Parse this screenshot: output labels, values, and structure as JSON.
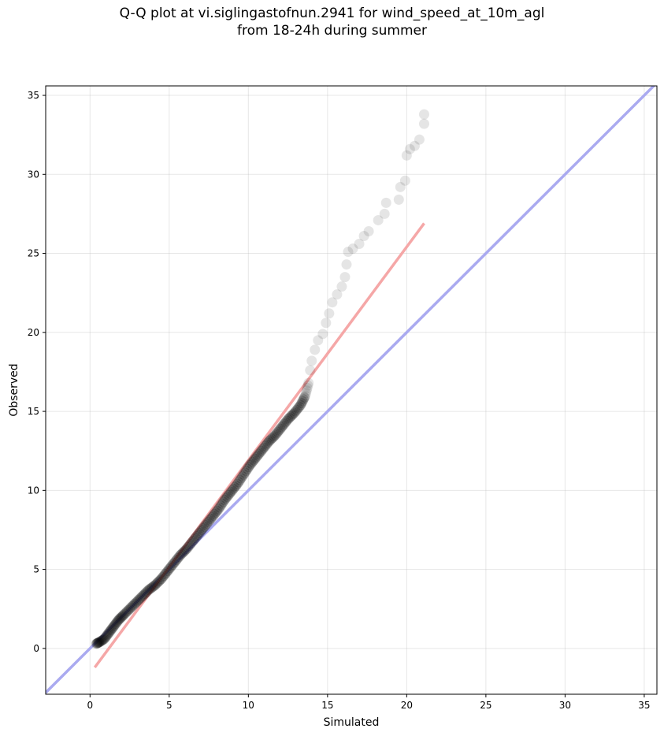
{
  "chart_data": {
    "type": "scatter",
    "title_line1": "Q-Q plot at vi.siglingastofnun.2941 for wind_speed_at_10m_agl",
    "title_line2": "from 18-24h during summer",
    "xlabel": "Simulated",
    "ylabel": "Observed",
    "xlim": [
      -2.8,
      35.8
    ],
    "ylim": [
      -2.9,
      35.6
    ],
    "xticks": [
      0,
      5,
      10,
      15,
      20,
      25,
      30,
      35
    ],
    "yticks": [
      0,
      5,
      10,
      15,
      20,
      25,
      30,
      35
    ],
    "grid": true,
    "identity_line": {
      "color": "#aaaaf0",
      "from": [
        -2.8,
        -2.8
      ],
      "to": [
        35.8,
        35.8
      ]
    },
    "fit_line": {
      "color": "#f5a7a7",
      "from": [
        0.3,
        -1.2
      ],
      "to": [
        21.1,
        26.9
      ]
    },
    "point_color": "#000000",
    "qq_points": [
      [
        0.4,
        0.3
      ],
      [
        0.6,
        0.4
      ],
      [
        0.9,
        0.6
      ],
      [
        1.2,
        1.0
      ],
      [
        1.5,
        1.4
      ],
      [
        1.8,
        1.8
      ],
      [
        2.1,
        2.1
      ],
      [
        2.5,
        2.5
      ],
      [
        2.9,
        2.9
      ],
      [
        3.3,
        3.3
      ],
      [
        3.7,
        3.7
      ],
      [
        4.1,
        4.0
      ],
      [
        4.5,
        4.4
      ],
      [
        4.9,
        4.9
      ],
      [
        5.3,
        5.4
      ],
      [
        5.7,
        5.9
      ],
      [
        6.1,
        6.3
      ],
      [
        6.5,
        6.8
      ],
      [
        6.9,
        7.3
      ],
      [
        7.3,
        7.8
      ],
      [
        7.7,
        8.3
      ],
      [
        8.1,
        8.8
      ],
      [
        8.5,
        9.4
      ],
      [
        8.9,
        9.9
      ],
      [
        9.3,
        10.4
      ],
      [
        9.7,
        11.0
      ],
      [
        10.1,
        11.6
      ],
      [
        10.5,
        12.1
      ],
      [
        10.9,
        12.6
      ],
      [
        11.3,
        13.1
      ],
      [
        11.7,
        13.5
      ],
      [
        12.1,
        14.0
      ],
      [
        12.5,
        14.5
      ],
      [
        12.9,
        14.9
      ],
      [
        13.3,
        15.4
      ],
      [
        13.6,
        16.0
      ],
      [
        13.8,
        16.8
      ],
      [
        13.9,
        17.6
      ],
      [
        14.0,
        18.2
      ],
      [
        14.2,
        18.9
      ],
      [
        14.4,
        19.5
      ],
      [
        14.7,
        19.9
      ],
      [
        14.9,
        20.6
      ],
      [
        15.1,
        21.2
      ],
      [
        15.3,
        21.9
      ],
      [
        15.6,
        22.4
      ],
      [
        15.9,
        22.9
      ],
      [
        16.1,
        23.5
      ],
      [
        16.2,
        24.3
      ],
      [
        16.3,
        25.1
      ],
      [
        16.6,
        25.3
      ],
      [
        17.0,
        25.6
      ],
      [
        17.3,
        26.1
      ],
      [
        17.6,
        26.4
      ],
      [
        18.2,
        27.1
      ],
      [
        18.6,
        27.5
      ],
      [
        18.7,
        28.2
      ],
      [
        19.5,
        28.4
      ],
      [
        19.6,
        29.2
      ],
      [
        19.9,
        29.6
      ],
      [
        20.0,
        31.2
      ],
      [
        20.2,
        31.6
      ],
      [
        20.5,
        31.8
      ],
      [
        20.8,
        32.2
      ],
      [
        21.1,
        33.2
      ],
      [
        21.1,
        33.8
      ]
    ]
  }
}
